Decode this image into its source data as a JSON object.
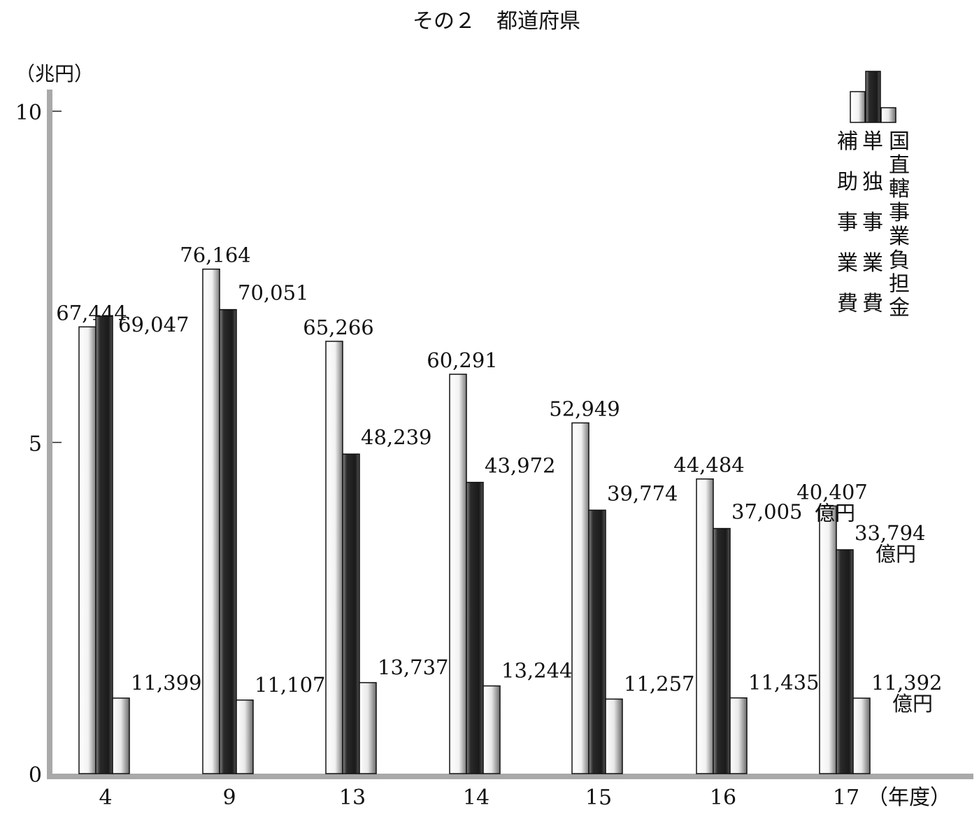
{
  "title": "その２　都道府県",
  "chart_data": {
    "type": "bar",
    "title": "その２　都道府県",
    "ylabel": "（兆円）",
    "xlabel": "（年度）",
    "unit_label": "億円",
    "ylim": [
      0,
      10
    ],
    "yticks": [
      "0",
      "5",
      "10"
    ],
    "categories": [
      "4",
      "9",
      "13",
      "14",
      "15",
      "16",
      "17"
    ],
    "series": [
      {
        "name": "補助事業費",
        "values": [
          67444,
          76164,
          65266,
          60291,
          52949,
          44484,
          40407
        ],
        "labels": [
          "67,444",
          "76,164",
          "65,266",
          "60,291",
          "52,949",
          "44,484",
          "40,407"
        ]
      },
      {
        "name": "単独事業費",
        "values": [
          69047,
          70051,
          48239,
          43972,
          39774,
          37005,
          33794
        ],
        "labels": [
          "69,047",
          "70,051",
          "48,239",
          "43,972",
          "39,774",
          "37,005",
          "33,794"
        ]
      },
      {
        "name": "国直轄事業負担金",
        "values": [
          11399,
          11107,
          13737,
          13244,
          11257,
          11435,
          11392
        ],
        "labels": [
          "11,399",
          "11,107",
          "13,737",
          "13,244",
          "11,257",
          "11,435",
          "11,392"
        ]
      }
    ],
    "legend_position": "top-right",
    "grid": false,
    "colors": {
      "light": "#f4f4f4",
      "dark": "#3a3a3a",
      "axis": "#a9a9a9"
    }
  }
}
